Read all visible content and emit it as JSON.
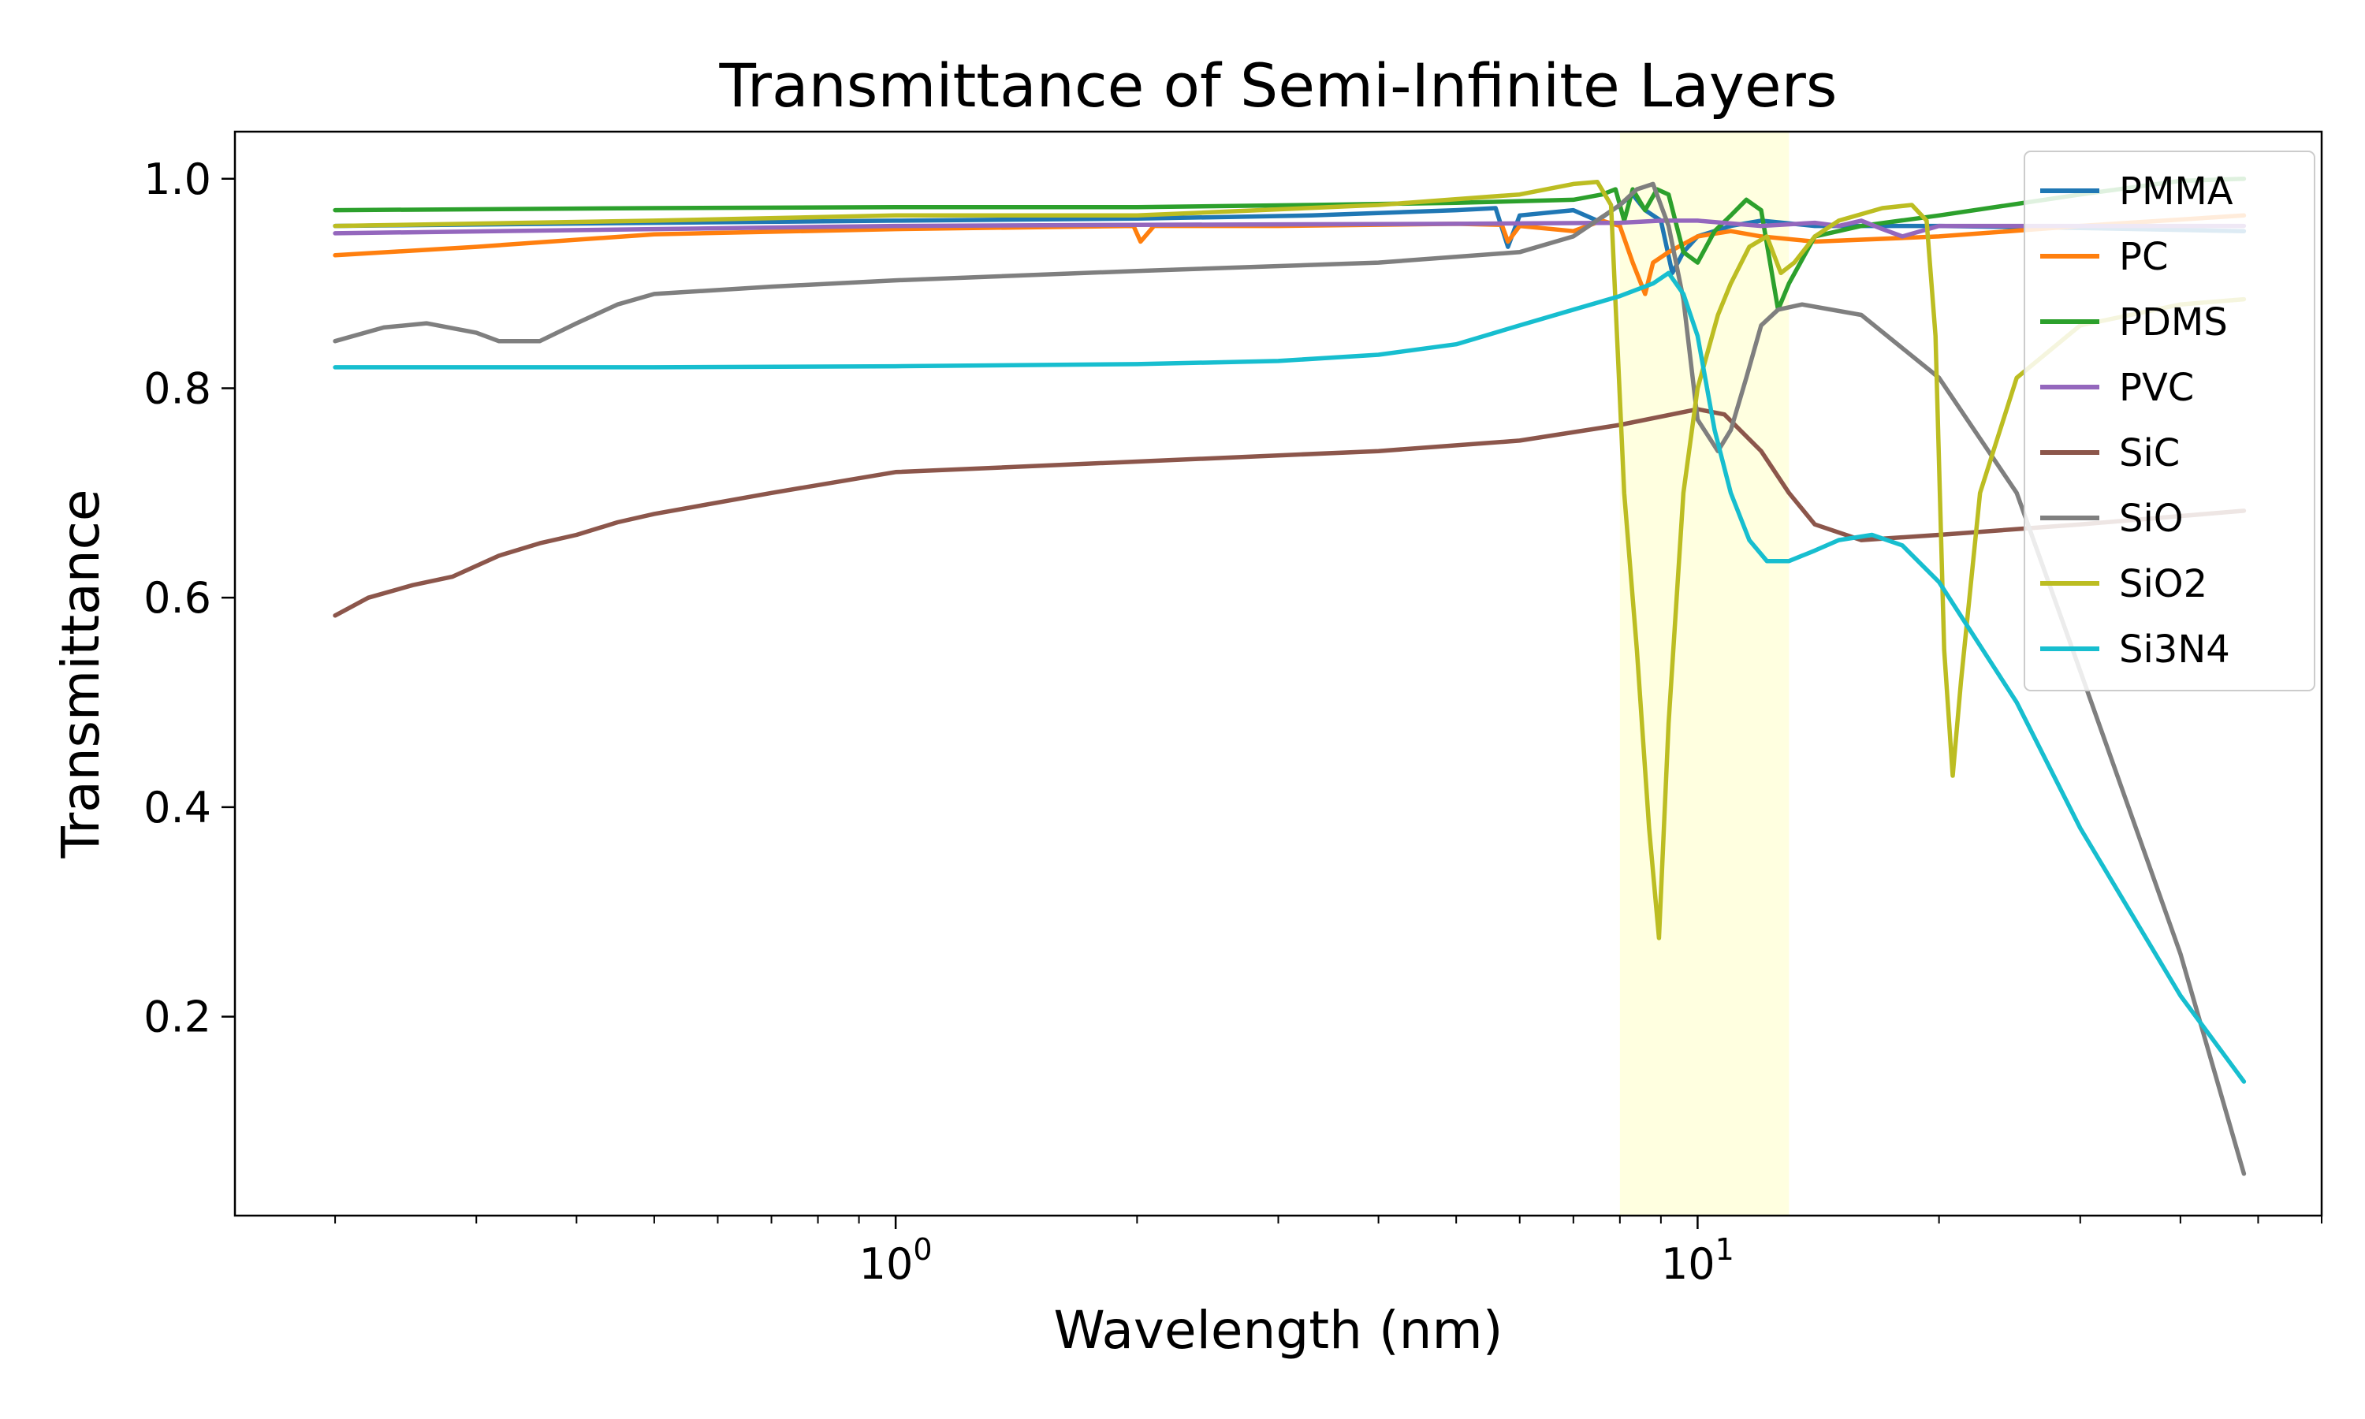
{
  "chart_data": {
    "type": "line",
    "title": "Transmittance of Semi-Infinite Layers",
    "xlabel": "Wavelength (nm)",
    "ylabel": "Transmittance",
    "xscale": "log",
    "xlim": [
      0.15,
      60
    ],
    "ylim": [
      0.01,
      1.045
    ],
    "xticks": [
      {
        "value": 1,
        "label": "10",
        "exp": "0"
      },
      {
        "value": 10,
        "label": "10",
        "exp": "1"
      }
    ],
    "yticks": [
      {
        "value": 0.2,
        "label": "0.2"
      },
      {
        "value": 0.4,
        "label": "0.4"
      },
      {
        "value": 0.6,
        "label": "0.6"
      },
      {
        "value": 0.8,
        "label": "0.8"
      },
      {
        "value": 1.0,
        "label": "1.0"
      }
    ],
    "grid": false,
    "legend_position": "top-right",
    "highlight_band": {
      "x_range": [
        8,
        13
      ],
      "color": "#ffffe0"
    },
    "series": [
      {
        "name": "PMMA",
        "color": "#1f77b4",
        "points": [
          [
            0.2,
            0.955
          ],
          [
            0.5,
            0.958
          ],
          [
            1,
            0.96
          ],
          [
            2,
            0.962
          ],
          [
            3.3,
            0.965
          ],
          [
            5,
            0.97
          ],
          [
            5.6,
            0.972
          ],
          [
            5.8,
            0.935
          ],
          [
            6,
            0.965
          ],
          [
            7,
            0.97
          ],
          [
            7.5,
            0.96
          ],
          [
            8,
            0.975
          ],
          [
            8.3,
            0.985
          ],
          [
            8.6,
            0.97
          ],
          [
            9,
            0.96
          ],
          [
            9.3,
            0.91
          ],
          [
            9.6,
            0.93
          ],
          [
            10,
            0.945
          ],
          [
            11,
            0.955
          ],
          [
            12,
            0.96
          ],
          [
            14,
            0.955
          ],
          [
            20,
            0.955
          ],
          [
            30,
            0.953
          ],
          [
            48,
            0.95
          ]
        ]
      },
      {
        "name": "PC",
        "color": "#ff7f0e",
        "points": [
          [
            0.2,
            0.927
          ],
          [
            0.3,
            0.935
          ],
          [
            0.5,
            0.947
          ],
          [
            1,
            0.952
          ],
          [
            1.98,
            0.955
          ],
          [
            2.02,
            0.94
          ],
          [
            2.1,
            0.955
          ],
          [
            3,
            0.955
          ],
          [
            5,
            0.957
          ],
          [
            5.7,
            0.956
          ],
          [
            5.8,
            0.94
          ],
          [
            6,
            0.955
          ],
          [
            7,
            0.95
          ],
          [
            7.6,
            0.96
          ],
          [
            8,
            0.955
          ],
          [
            8.3,
            0.92
          ],
          [
            8.6,
            0.89
          ],
          [
            8.8,
            0.92
          ],
          [
            9.2,
            0.93
          ],
          [
            10,
            0.945
          ],
          [
            11,
            0.95
          ],
          [
            12,
            0.945
          ],
          [
            14,
            0.94
          ],
          [
            20,
            0.945
          ],
          [
            30,
            0.955
          ],
          [
            48,
            0.965
          ]
        ]
      },
      {
        "name": "PDMS",
        "color": "#2ca02c",
        "points": [
          [
            0.2,
            0.97
          ],
          [
            0.5,
            0.972
          ],
          [
            1,
            0.973
          ],
          [
            2,
            0.973
          ],
          [
            3.3,
            0.975
          ],
          [
            5,
            0.977
          ],
          [
            7,
            0.98
          ],
          [
            7.6,
            0.985
          ],
          [
            7.9,
            0.99
          ],
          [
            8.1,
            0.96
          ],
          [
            8.3,
            0.99
          ],
          [
            8.6,
            0.97
          ],
          [
            8.9,
            0.99
          ],
          [
            9.2,
            0.985
          ],
          [
            9.6,
            0.93
          ],
          [
            10,
            0.92
          ],
          [
            10.5,
            0.95
          ],
          [
            11,
            0.965
          ],
          [
            11.5,
            0.98
          ],
          [
            12,
            0.97
          ],
          [
            12.6,
            0.875
          ],
          [
            13,
            0.9
          ],
          [
            14,
            0.945
          ],
          [
            16,
            0.955
          ],
          [
            20,
            0.965
          ],
          [
            30,
            0.985
          ],
          [
            40,
            0.998
          ],
          [
            48,
            1.0
          ]
        ]
      },
      {
        "name": "PVC",
        "color": "#9467bd",
        "points": [
          [
            0.2,
            0.948
          ],
          [
            0.5,
            0.952
          ],
          [
            1,
            0.955
          ],
          [
            2,
            0.956
          ],
          [
            5,
            0.957
          ],
          [
            8,
            0.958
          ],
          [
            9,
            0.96
          ],
          [
            10,
            0.96
          ],
          [
            12,
            0.955
          ],
          [
            14,
            0.958
          ],
          [
            15,
            0.955
          ],
          [
            16,
            0.96
          ],
          [
            17,
            0.952
          ],
          [
            18,
            0.945
          ],
          [
            20,
            0.955
          ],
          [
            30,
            0.955
          ],
          [
            48,
            0.955
          ]
        ]
      },
      {
        "name": "SiC",
        "color": "#8c564b",
        "points": [
          [
            0.2,
            0.583
          ],
          [
            0.22,
            0.6
          ],
          [
            0.25,
            0.612
          ],
          [
            0.28,
            0.62
          ],
          [
            0.32,
            0.64
          ],
          [
            0.36,
            0.652
          ],
          [
            0.4,
            0.66
          ],
          [
            0.45,
            0.672
          ],
          [
            0.5,
            0.68
          ],
          [
            0.7,
            0.7
          ],
          [
            1,
            0.72
          ],
          [
            2,
            0.73
          ],
          [
            4,
            0.74
          ],
          [
            6,
            0.75
          ],
          [
            8,
            0.765
          ],
          [
            10,
            0.78
          ],
          [
            10.8,
            0.775
          ],
          [
            12,
            0.74
          ],
          [
            13,
            0.7
          ],
          [
            14,
            0.67
          ],
          [
            16,
            0.655
          ],
          [
            20,
            0.66
          ],
          [
            30,
            0.67
          ],
          [
            48,
            0.683
          ]
        ]
      },
      {
        "name": "SiO",
        "color": "#7f7f7f",
        "points": [
          [
            0.2,
            0.845
          ],
          [
            0.23,
            0.858
          ],
          [
            0.26,
            0.862
          ],
          [
            0.3,
            0.853
          ],
          [
            0.32,
            0.845
          ],
          [
            0.36,
            0.845
          ],
          [
            0.4,
            0.862
          ],
          [
            0.45,
            0.88
          ],
          [
            0.5,
            0.89
          ],
          [
            0.7,
            0.897
          ],
          [
            1,
            0.903
          ],
          [
            2,
            0.912
          ],
          [
            4,
            0.92
          ],
          [
            6,
            0.93
          ],
          [
            7,
            0.945
          ],
          [
            8,
            0.975
          ],
          [
            8.4,
            0.99
          ],
          [
            8.8,
            0.995
          ],
          [
            9.2,
            0.955
          ],
          [
            9.6,
            0.885
          ],
          [
            10,
            0.77
          ],
          [
            10.6,
            0.74
          ],
          [
            11,
            0.76
          ],
          [
            11.5,
            0.81
          ],
          [
            12,
            0.86
          ],
          [
            12.6,
            0.875
          ],
          [
            13.5,
            0.88
          ],
          [
            16,
            0.87
          ],
          [
            20,
            0.81
          ],
          [
            25,
            0.7
          ],
          [
            30,
            0.53
          ],
          [
            40,
            0.26
          ],
          [
            48,
            0.05
          ]
        ]
      },
      {
        "name": "SiO2",
        "color": "#bcbd22",
        "points": [
          [
            0.2,
            0.955
          ],
          [
            0.5,
            0.96
          ],
          [
            1,
            0.965
          ],
          [
            2,
            0.965
          ],
          [
            4,
            0.975
          ],
          [
            6,
            0.985
          ],
          [
            7,
            0.995
          ],
          [
            7.5,
            0.997
          ],
          [
            7.8,
            0.975
          ],
          [
            8.1,
            0.7
          ],
          [
            8.4,
            0.55
          ],
          [
            8.7,
            0.38
          ],
          [
            8.95,
            0.275
          ],
          [
            9.2,
            0.48
          ],
          [
            9.6,
            0.7
          ],
          [
            10,
            0.8
          ],
          [
            10.6,
            0.87
          ],
          [
            11,
            0.9
          ],
          [
            11.6,
            0.935
          ],
          [
            12.2,
            0.945
          ],
          [
            12.7,
            0.91
          ],
          [
            13.2,
            0.92
          ],
          [
            14,
            0.945
          ],
          [
            15,
            0.96
          ],
          [
            17,
            0.972
          ],
          [
            18.5,
            0.975
          ],
          [
            19.3,
            0.96
          ],
          [
            19.8,
            0.85
          ],
          [
            20.3,
            0.55
          ],
          [
            20.8,
            0.43
          ],
          [
            21.3,
            0.52
          ],
          [
            22.5,
            0.7
          ],
          [
            25,
            0.81
          ],
          [
            30,
            0.86
          ],
          [
            40,
            0.88
          ],
          [
            48,
            0.885
          ]
        ]
      },
      {
        "name": "Si3N4",
        "color": "#17becf",
        "points": [
          [
            0.2,
            0.82
          ],
          [
            0.5,
            0.82
          ],
          [
            1,
            0.821
          ],
          [
            2,
            0.823
          ],
          [
            3,
            0.826
          ],
          [
            4,
            0.832
          ],
          [
            5,
            0.842
          ],
          [
            6,
            0.86
          ],
          [
            7,
            0.875
          ],
          [
            8,
            0.888
          ],
          [
            8.8,
            0.9
          ],
          [
            9.2,
            0.91
          ],
          [
            9.6,
            0.89
          ],
          [
            10,
            0.85
          ],
          [
            10.5,
            0.76
          ],
          [
            11,
            0.7
          ],
          [
            11.6,
            0.655
          ],
          [
            12.2,
            0.635
          ],
          [
            13,
            0.635
          ],
          [
            14,
            0.645
          ],
          [
            15,
            0.655
          ],
          [
            16.5,
            0.66
          ],
          [
            18,
            0.65
          ],
          [
            20,
            0.615
          ],
          [
            25,
            0.5
          ],
          [
            30,
            0.38
          ],
          [
            40,
            0.22
          ],
          [
            48,
            0.138
          ]
        ]
      }
    ]
  }
}
